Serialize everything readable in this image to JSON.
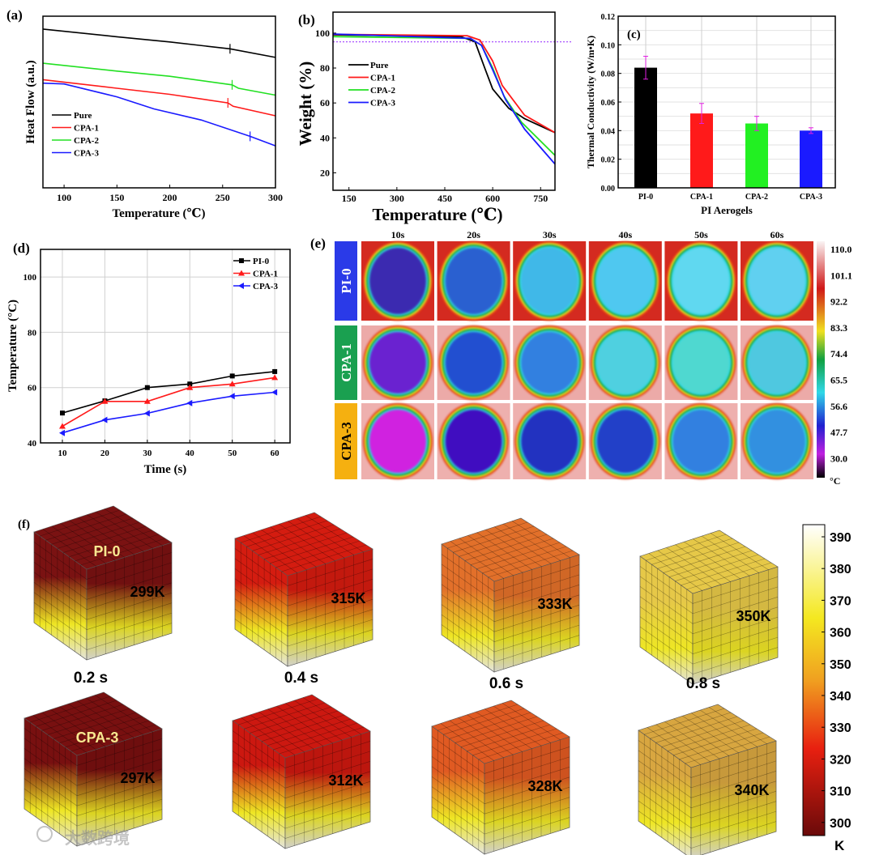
{
  "colors": {
    "black": "#000000",
    "red": "#ff1a1a",
    "green": "#22e022",
    "blue": "#1a1aff",
    "magenta": "#e020e0",
    "violet": "#a040ff"
  },
  "chart_data": [
    {
      "panel": "(a)",
      "type": "line",
      "xlabel": "Temperature (℃)",
      "ylabel": "Heat Flow (a.u.)",
      "xlim": [
        80,
        300
      ],
      "ylim": [
        0,
        10
      ],
      "xticks": [
        100,
        150,
        200,
        250,
        300
      ],
      "series": [
        {
          "name": "Pure",
          "color": "#000000",
          "x": [
            80,
            150,
            200,
            257,
            300
          ],
          "y": [
            9.25,
            8.8,
            8.5,
            8.1,
            7.6
          ],
          "mark_x": 257
        },
        {
          "name": "CPA-1",
          "color": "#ff1a1a",
          "x": [
            80,
            150,
            200,
            255,
            260,
            300
          ],
          "y": [
            6.3,
            5.8,
            5.45,
            4.95,
            4.75,
            4.2
          ],
          "mark_x": 255
        },
        {
          "name": "CPA-2",
          "color": "#22e022",
          "x": [
            80,
            150,
            200,
            259,
            265,
            300
          ],
          "y": [
            7.26,
            6.8,
            6.5,
            6.0,
            5.8,
            5.4
          ],
          "mark_x": 259
        },
        {
          "name": "CPA-3",
          "color": "#1a1aff",
          "x": [
            80,
            100,
            150,
            185,
            230,
            276,
            300
          ],
          "y": [
            6.1,
            6.05,
            5.3,
            4.6,
            3.95,
            3.0,
            2.45
          ],
          "mark_x": 276
        }
      ]
    },
    {
      "panel": "(b)",
      "type": "line",
      "xlabel": "Temperature (℃)",
      "ylabel": "Weight (%)",
      "xlim": [
        100,
        795
      ],
      "ylim": [
        10,
        112
      ],
      "xticks": [
        150,
        300,
        450,
        600,
        750
      ],
      "yticks": [
        20,
        40,
        60,
        80,
        100
      ],
      "reference_line": 95,
      "series": [
        {
          "name": "Pure",
          "color": "#000000",
          "x": [
            100,
            500,
            545,
            575,
            600,
            650,
            700,
            795
          ],
          "y": [
            99,
            98,
            95,
            80,
            68,
            57,
            51,
            43
          ]
        },
        {
          "name": "CPA-1",
          "color": "#ff1a1a",
          "x": [
            100,
            520,
            560,
            600,
            630,
            700,
            795
          ],
          "y": [
            99.3,
            98.5,
            96,
            84,
            70,
            53,
            43
          ]
        },
        {
          "name": "CPA-2",
          "color": "#22e022",
          "x": [
            100,
            530,
            565,
            600,
            635,
            690,
            795
          ],
          "y": [
            98,
            97,
            93,
            80,
            64,
            49,
            30
          ]
        },
        {
          "name": "CPA-3",
          "color": "#1a1aff",
          "x": [
            100,
            530,
            565,
            600,
            640,
            700,
            795
          ],
          "y": [
            99.5,
            97,
            93,
            79,
            62,
            45,
            25
          ]
        }
      ]
    },
    {
      "panel": "(c)",
      "type": "bar",
      "xlabel": "PI Aerogels",
      "ylabel": "Thermal Conductivity (W/m•K)",
      "ylim": [
        0,
        0.12
      ],
      "yticks": [
        "0.00",
        "0.02",
        "0.04",
        "0.06",
        "0.08",
        "0.10",
        "0.12"
      ],
      "categories": [
        "PI-0",
        "CPA-1",
        "CPA-2",
        "CPA-3"
      ],
      "values": [
        0.084,
        0.052,
        0.045,
        0.04
      ],
      "errors": [
        0.008,
        0.007,
        0.005,
        0.002
      ],
      "bar_colors": [
        "#000000",
        "#ff1a1a",
        "#22f022",
        "#1a1aff"
      ]
    },
    {
      "panel": "(d)",
      "type": "line",
      "xlabel": "Time (s)",
      "ylabel": "Temperature (°C)",
      "xlim": [
        4.85,
        63.6
      ],
      "ylim": [
        40,
        110
      ],
      "x": [
        10,
        20,
        30,
        40,
        50,
        60
      ],
      "yticks": [
        40,
        60,
        80,
        100
      ],
      "series": [
        {
          "name": "PI-0",
          "color": "#000000",
          "marker": "square",
          "y": [
            50.8,
            55.2,
            60.0,
            61.3,
            64.2,
            65.8
          ]
        },
        {
          "name": "CPA-1",
          "color": "#ff1a1a",
          "marker": "triangle",
          "y": [
            46.0,
            55.0,
            55.0,
            60.0,
            61.3,
            63.6
          ]
        },
        {
          "name": "CPA-3",
          "color": "#1a1aff",
          "marker": "left-triangle",
          "y": [
            43.6,
            48.3,
            50.7,
            54.4,
            56.9,
            58.3
          ]
        }
      ]
    },
    {
      "panel": "(e)",
      "type": "heatmap",
      "columns": [
        "10s",
        "20s",
        "30s",
        "40s",
        "50s",
        "60s"
      ],
      "rows": [
        {
          "label": "PI-0",
          "label_color": "#2a3ae8",
          "text_color": "#ffffff",
          "background": "#d42a20",
          "inner": [
            "#3a2ab0",
            "#2a60d0",
            "#40b8e8",
            "#50c8f0",
            "#60d8f0",
            "#60d0f0"
          ]
        },
        {
          "label": "CPA-1",
          "label_color": "#1aa050",
          "text_color": "#ffffff",
          "background": "#ecaaa8",
          "inner": [
            "#6a20d0",
            "#2050d0",
            "#3080e0",
            "#50d0e0",
            "#50d8d0",
            "#50c8e0"
          ]
        },
        {
          "label": "CPA-3",
          "label_color": "#f5b010",
          "text_color": "#000000",
          "background": "#eeb0ae",
          "inner": [
            "#d020e0",
            "#4010c0",
            "#2030c0",
            "#2040c8",
            "#3080e0",
            "#3090e0"
          ]
        }
      ],
      "colorbar": {
        "ticks": [
          "110.0",
          "101.1",
          "92.2",
          "83.3",
          "74.4",
          "65.5",
          "56.6",
          "47.7",
          "30.0"
        ],
        "unit": "°C"
      }
    },
    {
      "panel": "(f)",
      "type": "heatmap",
      "times": [
        "0.2 s",
        "0.4 s",
        "0.6 s",
        "0.8 s"
      ],
      "rows": [
        {
          "label": "PI-0",
          "temps": [
            "299K",
            "315K",
            "333K",
            "350K"
          ],
          "top_colors": [
            "#7a1212",
            "#d41c10",
            "#e2702a",
            "#e6c848"
          ]
        },
        {
          "label": "CPA-3",
          "temps": [
            "297K",
            "312K",
            "328K",
            "340K"
          ],
          "top_colors": [
            "#781010",
            "#cc1810",
            "#e05a22",
            "#d8a640"
          ]
        }
      ],
      "colorbar": {
        "ticks": [
          "390",
          "380",
          "370",
          "360",
          "350",
          "340",
          "330",
          "320",
          "310",
          "300"
        ],
        "unit": "K"
      }
    }
  ],
  "watermark": "大数跨境"
}
